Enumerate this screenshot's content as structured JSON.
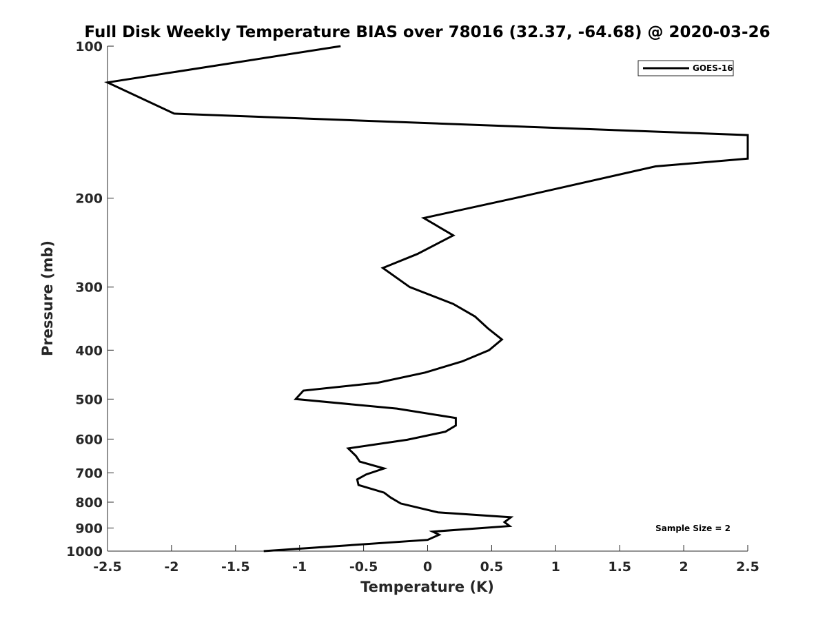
{
  "chart_data": {
    "type": "line",
    "title": "Full Disk Weekly Temperature BIAS over 78016 (32.37, -64.68) @ 2020-03-26",
    "xlabel": "Temperature (K)",
    "ylabel": "Pressure (mb)",
    "xlim": [
      -2.5,
      2.5
    ],
    "ylim": [
      100,
      1000
    ],
    "yscale": "log",
    "y_reversed": true,
    "grid": false,
    "legend_position": "top-right",
    "x_ticks": [
      -2.5,
      -2,
      -1.5,
      -1,
      -0.5,
      0,
      0.5,
      1,
      1.5,
      2,
      2.5
    ],
    "x_tick_labels": [
      "-2.5",
      "-2",
      "-1.5",
      "-1",
      "-0.5",
      "0",
      "0.5",
      "1",
      "1.5",
      "2",
      "2.5"
    ],
    "y_ticks": [
      100,
      200,
      300,
      400,
      500,
      600,
      700,
      800,
      900,
      1000
    ],
    "y_tick_labels": [
      "100",
      "200",
      "300",
      "400",
      "500",
      "600",
      "700",
      "800",
      "900",
      "1000"
    ],
    "annotation": "Sample Size = 2",
    "series": [
      {
        "name": "GOES-16",
        "color": "#000000",
        "points": [
          [
            -0.68,
            100
          ],
          [
            -2.5,
            118
          ],
          [
            -1.98,
            136
          ],
          [
            2.5,
            150
          ],
          [
            2.5,
            167
          ],
          [
            1.78,
            173
          ],
          [
            0.68,
            200
          ],
          [
            -0.03,
            219
          ],
          [
            0.2,
            237
          ],
          [
            -0.08,
            258
          ],
          [
            -0.35,
            275
          ],
          [
            -0.14,
            300
          ],
          [
            0.2,
            324
          ],
          [
            0.37,
            343
          ],
          [
            0.47,
            362
          ],
          [
            0.58,
            381
          ],
          [
            0.48,
            400
          ],
          [
            0.27,
            421
          ],
          [
            -0.02,
            443
          ],
          [
            -0.39,
            464
          ],
          [
            -0.97,
            481
          ],
          [
            -1.03,
            500
          ],
          [
            -0.24,
            522
          ],
          [
            0.22,
            545
          ],
          [
            0.22,
            564
          ],
          [
            0.14,
            580
          ],
          [
            -0.16,
            602
          ],
          [
            -0.62,
            626
          ],
          [
            -0.56,
            648
          ],
          [
            -0.53,
            665
          ],
          [
            -0.34,
            686
          ],
          [
            -0.48,
            705
          ],
          [
            -0.55,
            721
          ],
          [
            -0.54,
            740
          ],
          [
            -0.34,
            766
          ],
          [
            -0.29,
            783
          ],
          [
            -0.21,
            805
          ],
          [
            0.08,
            838
          ],
          [
            0.65,
            857
          ],
          [
            0.6,
            876
          ],
          [
            0.64,
            892
          ],
          [
            0.04,
            915
          ],
          [
            0.09,
            928
          ],
          [
            0.0,
            950
          ],
          [
            -1.28,
            1000
          ]
        ]
      }
    ]
  }
}
